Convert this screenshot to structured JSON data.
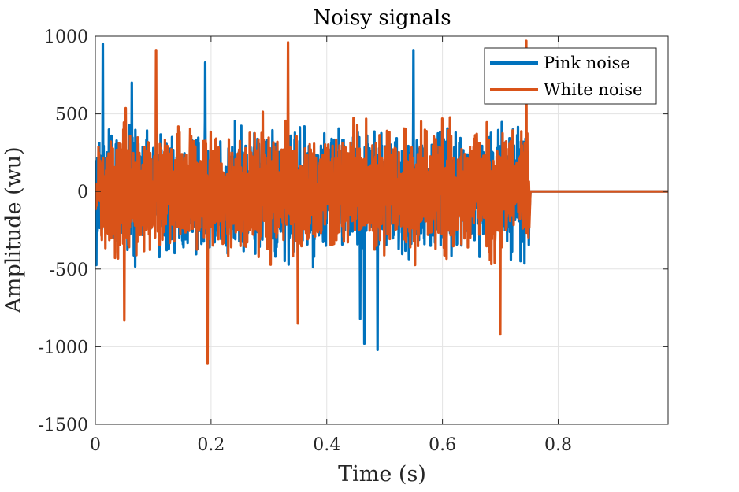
{
  "chart_data": {
    "type": "line",
    "title": "Noisy signals",
    "xlabel": "Time (s)",
    "ylabel": "Amplitude (wu)",
    "xlim": [
      0,
      0.99
    ],
    "ylim": [
      -1500,
      1000
    ],
    "x_ticks": [
      0,
      0.2,
      0.4,
      0.6,
      0.8
    ],
    "x_tick_labels": [
      "0",
      "0.2",
      "0.4",
      "0.6",
      "0.8"
    ],
    "y_ticks": [
      -1500,
      -1000,
      -500,
      0,
      500,
      1000
    ],
    "y_tick_labels": [
      "-1500",
      "-1000",
      "-500",
      "0",
      "500",
      "1000"
    ],
    "grid": true,
    "legend_position": "top-right",
    "signal_end_time": 0.75,
    "series": [
      {
        "name": "Pink noise",
        "color": "#0072BD",
        "typical_amplitude": 560,
        "peaks": [
          {
            "x": 0.013,
            "y": 950
          },
          {
            "x": 0.19,
            "y": 830
          },
          {
            "x": 0.55,
            "y": 910
          },
          {
            "x": 0.063,
            "y": 700
          },
          {
            "x": 0.465,
            "y": -980
          },
          {
            "x": 0.488,
            "y": -1020
          },
          {
            "x": 0.458,
            "y": -820
          }
        ]
      },
      {
        "name": "White noise",
        "color": "#D95319",
        "typical_amplitude": 560,
        "peaks": [
          {
            "x": 0.333,
            "y": 960
          },
          {
            "x": 0.745,
            "y": 970
          },
          {
            "x": 0.105,
            "y": 910
          },
          {
            "x": 0.194,
            "y": -1110
          },
          {
            "x": 0.05,
            "y": -830
          },
          {
            "x": 0.35,
            "y": -850
          },
          {
            "x": 0.7,
            "y": -920
          }
        ]
      }
    ]
  }
}
